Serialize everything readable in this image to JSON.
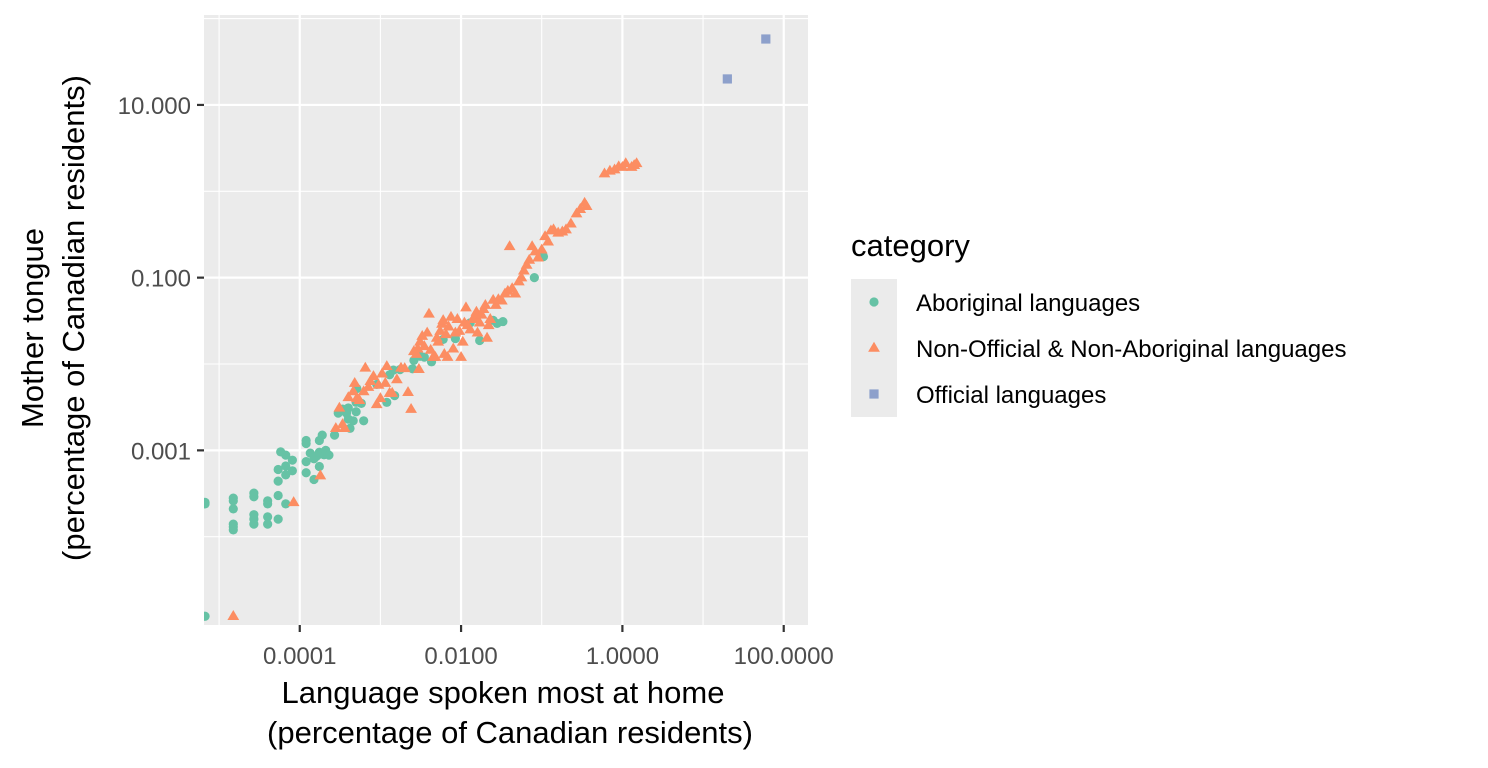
{
  "chart_data": {
    "type": "scatter",
    "xlabel_lines": [
      "Language spoken most at home",
      "(percentage of Canadian residents)"
    ],
    "ylabel_lines": [
      "Mother tongue",
      "(percentage of Canadian residents)"
    ],
    "x_scale": "log10",
    "y_scale": "log10",
    "xlim": [
      6.5e-06,
      200
    ],
    "ylim": [
      9.5e-06,
      110
    ],
    "x_ticks": [
      0.0001,
      0.01,
      1,
      100
    ],
    "x_tick_labels": [
      "0.0001",
      "0.0100",
      "1.0000",
      "100.0000"
    ],
    "y_ticks": [
      0.001,
      0.1,
      10
    ],
    "y_tick_labels": [
      "0.001",
      "0.100",
      "10.000"
    ],
    "legend": {
      "title": "category",
      "placement": "right"
    },
    "colors": {
      "panel": "#ebebeb",
      "grid": "#ffffff",
      "legend_key_bg": "#ebebeb"
    },
    "series": [
      {
        "name": "Aboriginal languages",
        "shape": "circle",
        "color": "#66c2a5",
        "points": [
          [
            6.7e-06,
            1.2e-05
          ],
          [
            6.7e-06,
            0.00024
          ],
          [
            6.7e-06,
            0.00025
          ],
          [
            1.5e-05,
            0.00012
          ],
          [
            1.5e-05,
            0.00013
          ],
          [
            1.5e-05,
            0.00014
          ],
          [
            1.5e-05,
            0.00021
          ],
          [
            1.5e-05,
            0.00026
          ],
          [
            1.5e-05,
            0.00028
          ],
          [
            2.7e-05,
            0.00014
          ],
          [
            2.7e-05,
            0.00016
          ],
          [
            2.7e-05,
            0.00018
          ],
          [
            2.7e-05,
            0.00029
          ],
          [
            2.7e-05,
            0.00032
          ],
          [
            4e-05,
            0.00014
          ],
          [
            4e-05,
            0.00017
          ],
          [
            4e-05,
            0.00024
          ],
          [
            4e-05,
            0.00026
          ],
          [
            5.4e-05,
            0.00016
          ],
          [
            5.4e-05,
            0.0003
          ],
          [
            5.4e-05,
            0.00044
          ],
          [
            5.4e-05,
            0.0006
          ],
          [
            5.8e-05,
            0.00096
          ],
          [
            6.7e-05,
            0.00024
          ],
          [
            6.7e-05,
            0.00052
          ],
          [
            6.7e-05,
            0.00066
          ],
          [
            6.7e-05,
            0.00088
          ],
          [
            8.1e-05,
            0.00058
          ],
          [
            8.1e-05,
            0.00077
          ],
          [
            0.00012,
            0.00055
          ],
          [
            0.00012,
            0.00074
          ],
          [
            0.00012,
            0.0012
          ],
          [
            0.00012,
            0.0013
          ],
          [
            0.000135,
            0.00093
          ],
          [
            0.00015,
            0.00046
          ],
          [
            0.00015,
            0.0008
          ],
          [
            0.00016,
            0.00085
          ],
          [
            0.000175,
            0.00065
          ],
          [
            0.000175,
            0.0009
          ],
          [
            0.000175,
            0.00095
          ],
          [
            0.000175,
            0.0013
          ],
          [
            0.00019,
            0.0015
          ],
          [
            0.0002,
            0.00089
          ],
          [
            0.00021,
            0.001
          ],
          [
            0.00023,
            0.00088
          ],
          [
            0.00027,
            0.0015
          ],
          [
            0.0003,
            0.0027
          ],
          [
            0.00034,
            0.003
          ],
          [
            0.00038,
            0.0027
          ],
          [
            0.0004,
            0.0023
          ],
          [
            0.0004,
            0.0031
          ],
          [
            0.00042,
            0.0018
          ],
          [
            0.00046,
            0.0022
          ],
          [
            0.0005,
            0.0028
          ],
          [
            0.0005,
            0.0036
          ],
          [
            0.00051,
            0.0052
          ],
          [
            0.00058,
            0.0035
          ],
          [
            0.00062,
            0.0022
          ],
          [
            0.0009,
            0.0058
          ],
          [
            0.0012,
            0.0036
          ],
          [
            0.0013,
            0.0075
          ],
          [
            0.00145,
            0.0085
          ],
          [
            0.0015,
            0.0043
          ],
          [
            0.00175,
            0.0086
          ],
          [
            0.0025,
            0.0088
          ],
          [
            0.0026,
            0.011
          ],
          [
            0.0031,
            0.0123
          ],
          [
            0.0035,
            0.012
          ],
          [
            0.0043,
            0.0106
          ],
          [
            0.006,
            0.0193
          ],
          [
            0.0085,
            0.0197
          ],
          [
            0.013,
            0.03
          ],
          [
            0.017,
            0.0187
          ],
          [
            0.025,
            0.032
          ],
          [
            0.028,
            0.0295
          ],
          [
            0.033,
            0.031
          ],
          [
            0.081,
            0.1
          ],
          [
            0.105,
            0.175
          ]
        ]
      },
      {
        "name": "Non-Official & Non-Aboriginal languages",
        "shape": "triangle",
        "color": "#fc8d62",
        "points": [
          [
            1.5e-05,
            1.2e-05
          ],
          [
            8.4e-05,
            0.00025
          ],
          [
            0.00018,
            0.00051
          ],
          [
            0.00028,
            0.0018
          ],
          [
            0.00031,
            0.0031
          ],
          [
            0.00034,
            0.002
          ],
          [
            0.00036,
            0.0018
          ],
          [
            0.0004,
            0.0041
          ],
          [
            0.00046,
            0.0048
          ],
          [
            0.00048,
            0.006
          ],
          [
            0.00051,
            0.004
          ],
          [
            0.00055,
            0.0038
          ],
          [
            0.00062,
            0.0048
          ],
          [
            0.00065,
            0.009
          ],
          [
            0.00071,
            0.0054
          ],
          [
            0.00075,
            0.0063
          ],
          [
            0.00082,
            0.0072
          ],
          [
            0.0009,
            0.0034
          ],
          [
            0.00095,
            0.0057
          ],
          [
            0.001,
            0.004
          ],
          [
            0.00105,
            0.0077
          ],
          [
            0.00115,
            0.006
          ],
          [
            0.0012,
            0.0094
          ],
          [
            0.0013,
            0.0046
          ],
          [
            0.0014,
            0.0046
          ],
          [
            0.0016,
            0.0066
          ],
          [
            0.0018,
            0.009
          ],
          [
            0.002,
            0.0089
          ],
          [
            0.0022,
            0.0047
          ],
          [
            0.0024,
            0.003
          ],
          [
            0.0026,
            0.014
          ],
          [
            0.0028,
            0.013
          ],
          [
            0.0029,
            0.015
          ],
          [
            0.003,
            0.0087
          ],
          [
            0.0031,
            0.018
          ],
          [
            0.0033,
            0.021
          ],
          [
            0.0035,
            0.016
          ],
          [
            0.0038,
            0.023
          ],
          [
            0.004,
            0.038
          ],
          [
            0.0042,
            0.0145
          ],
          [
            0.0045,
            0.012
          ],
          [
            0.0048,
            0.012
          ],
          [
            0.005,
            0.02
          ],
          [
            0.0052,
            0.018
          ],
          [
            0.0055,
            0.024
          ],
          [
            0.0058,
            0.029
          ],
          [
            0.006,
            0.032
          ],
          [
            0.0062,
            0.013
          ],
          [
            0.0065,
            0.022
          ],
          [
            0.0068,
            0.012
          ],
          [
            0.007,
            0.027
          ],
          [
            0.0075,
            0.035
          ],
          [
            0.008,
            0.015
          ],
          [
            0.0085,
            0.023
          ],
          [
            0.009,
            0.033
          ],
          [
            0.0095,
            0.024
          ],
          [
            0.01,
            0.012
          ],
          [
            0.0105,
            0.018
          ],
          [
            0.011,
            0.03
          ],
          [
            0.0115,
            0.045
          ],
          [
            0.012,
            0.028
          ],
          [
            0.013,
            0.025
          ],
          [
            0.014,
            0.033
          ],
          [
            0.015,
            0.035
          ],
          [
            0.0155,
            0.04
          ],
          [
            0.016,
            0.023
          ],
          [
            0.017,
            0.03
          ],
          [
            0.018,
            0.037
          ],
          [
            0.019,
            0.043
          ],
          [
            0.02,
            0.048
          ],
          [
            0.021,
            0.02
          ],
          [
            0.022,
            0.028
          ],
          [
            0.023,
            0.033
          ],
          [
            0.025,
            0.055
          ],
          [
            0.027,
            0.048
          ],
          [
            0.029,
            0.056
          ],
          [
            0.032,
            0.054
          ],
          [
            0.035,
            0.065
          ],
          [
            0.038,
            0.07
          ],
          [
            0.04,
            0.23
          ],
          [
            0.043,
            0.075
          ],
          [
            0.047,
            0.065
          ],
          [
            0.052,
            0.09
          ],
          [
            0.056,
            0.1
          ],
          [
            0.06,
            0.12
          ],
          [
            0.065,
            0.14
          ],
          [
            0.07,
            0.16
          ],
          [
            0.076,
            0.23
          ],
          [
            0.083,
            0.2
          ],
          [
            0.09,
            0.17
          ],
          [
            0.1,
            0.21
          ],
          [
            0.11,
            0.3
          ],
          [
            0.12,
            0.26
          ],
          [
            0.13,
            0.35
          ],
          [
            0.14,
            0.36
          ],
          [
            0.16,
            0.33
          ],
          [
            0.18,
            0.34
          ],
          [
            0.2,
            0.36
          ],
          [
            0.23,
            0.42
          ],
          [
            0.27,
            0.55
          ],
          [
            0.3,
            0.62
          ],
          [
            0.34,
            0.73
          ],
          [
            0.36,
            0.67
          ],
          [
            0.6,
            1.6
          ],
          [
            0.7,
            1.72
          ],
          [
            0.8,
            1.78
          ],
          [
            0.9,
            1.93
          ],
          [
            1.0,
            1.9
          ],
          [
            1.1,
            2.1
          ],
          [
            1.3,
            1.9
          ],
          [
            1.4,
            2.0
          ],
          [
            1.5,
            2.1
          ]
        ]
      },
      {
        "name": "Official languages",
        "shape": "square",
        "color": "#8da0cb",
        "points": [
          [
            20.0,
            20.0
          ],
          [
            60.0,
            58.0
          ]
        ]
      }
    ]
  }
}
